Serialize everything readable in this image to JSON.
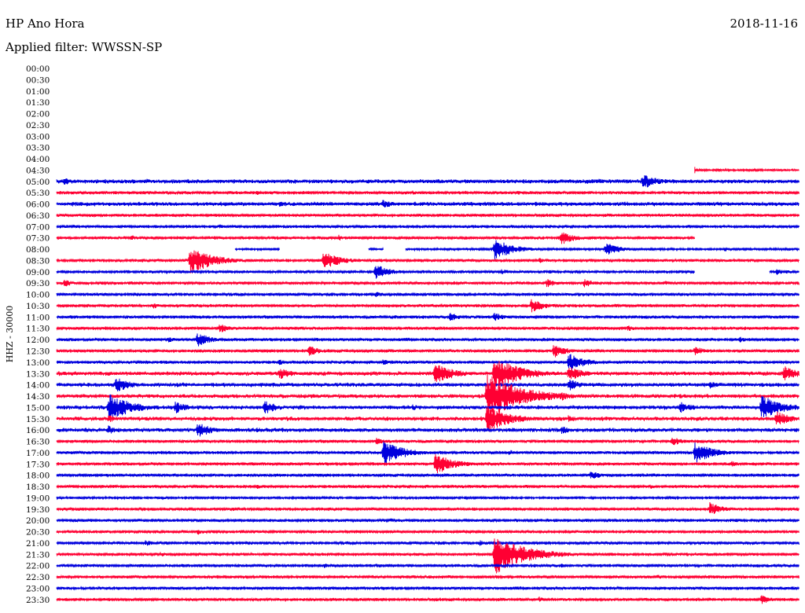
{
  "header": {
    "title": "HP Ano Hora",
    "date": "2018-11-16",
    "filter": "Applied filter: WWSSN-SP"
  },
  "chart_data": {
    "type": "line",
    "title": "HP Ano Hora",
    "subtitle": "Applied filter: WWSSN-SP",
    "date": "2018-11-16",
    "ylabel": "HHZ - 30000",
    "yticks": [
      "00:00",
      "00:30",
      "01:00",
      "01:30",
      "02:00",
      "02:30",
      "03:00",
      "03:30",
      "04:00",
      "04:30",
      "05:00",
      "05:30",
      "06:00",
      "06:30",
      "07:00",
      "07:30",
      "08:00",
      "08:30",
      "09:00",
      "09:30",
      "10:00",
      "10:30",
      "11:00",
      "11:30",
      "12:00",
      "12:30",
      "13:00",
      "13:30",
      "14:00",
      "14:30",
      "15:00",
      "15:30",
      "16:00",
      "16:30",
      "17:00",
      "17:30",
      "18:00",
      "18:30",
      "19:00",
      "19:30",
      "20:00",
      "20:30",
      "21:00",
      "21:30",
      "22:00",
      "22:30",
      "23:00",
      "23:30"
    ],
    "colors": {
      "odd": "#0000dd",
      "even": "#ff0033"
    },
    "first_trace_index": 9,
    "traces": [
      {
        "time": "04:30",
        "color": "red",
        "start_frac": 0.86,
        "end_frac": 1.0,
        "amp": 1,
        "events": []
      },
      {
        "time": "05:00",
        "color": "blue",
        "amp": 2,
        "events": [
          [
            0.01,
            5
          ],
          [
            0.12,
            4
          ],
          [
            0.73,
            4
          ],
          [
            0.79,
            10
          ]
        ]
      },
      {
        "time": "05:30",
        "color": "red",
        "amp": 1.5,
        "events": [
          [
            0.27,
            3
          ],
          [
            0.48,
            3
          ],
          [
            0.62,
            3
          ]
        ]
      },
      {
        "time": "06:00",
        "color": "blue",
        "amp": 2,
        "events": [
          [
            0.04,
            3
          ],
          [
            0.3,
            4
          ],
          [
            0.44,
            6
          ],
          [
            0.6,
            3
          ]
        ]
      },
      {
        "time": "06:30",
        "color": "red",
        "amp": 1.5,
        "events": [
          [
            0.27,
            2
          ],
          [
            0.73,
            2
          ],
          [
            0.84,
            2
          ]
        ]
      },
      {
        "time": "07:00",
        "color": "blue",
        "amp": 1.5,
        "events": [
          [
            0.22,
            3
          ],
          [
            0.5,
            2
          ]
        ]
      },
      {
        "time": "07:30",
        "color": "red",
        "amp": 1.5,
        "end_frac": 0.86,
        "events": [
          [
            0.1,
            4
          ],
          [
            0.38,
            4
          ],
          [
            0.68,
            9
          ]
        ]
      },
      {
        "time": "08:00",
        "color": "blue",
        "amp": 1.2,
        "gaps": [
          [
            0.0,
            0.24
          ],
          [
            0.3,
            0.42
          ],
          [
            0.44,
            0.47
          ]
        ],
        "events": [
          [
            0.59,
            14
          ],
          [
            0.74,
            9
          ],
          [
            0.9,
            3
          ]
        ]
      },
      {
        "time": "08:30",
        "color": "red",
        "amp": 1.5,
        "events": [
          [
            0.18,
            18
          ],
          [
            0.36,
            12
          ],
          [
            0.65,
            4
          ]
        ]
      },
      {
        "time": "09:00",
        "color": "blue",
        "amp": 1.5,
        "gaps": [
          [
            0.86,
            0.96
          ]
        ],
        "events": [
          [
            0.43,
            10
          ],
          [
            0.6,
            4
          ],
          [
            0.97,
            4
          ]
        ]
      },
      {
        "time": "09:30",
        "color": "red",
        "amp": 1.5,
        "events": [
          [
            0.01,
            5
          ],
          [
            0.66,
            6
          ],
          [
            0.71,
            6
          ],
          [
            0.82,
            3
          ]
        ]
      },
      {
        "time": "10:00",
        "color": "blue",
        "amp": 1.5,
        "events": [
          [
            0.43,
            4
          ]
        ]
      },
      {
        "time": "10:30",
        "color": "red",
        "amp": 1.5,
        "events": [
          [
            0.13,
            4
          ],
          [
            0.64,
            9
          ]
        ]
      },
      {
        "time": "11:00",
        "color": "blue",
        "amp": 1.5,
        "events": [
          [
            0.53,
            6
          ],
          [
            0.59,
            6
          ]
        ]
      },
      {
        "time": "11:30",
        "color": "red",
        "amp": 1.5,
        "events": [
          [
            0.22,
            6
          ],
          [
            0.77,
            4
          ]
        ]
      },
      {
        "time": "12:00",
        "color": "blue",
        "amp": 1.5,
        "events": [
          [
            0.15,
            4
          ],
          [
            0.19,
            9
          ],
          [
            0.92,
            4
          ]
        ]
      },
      {
        "time": "12:30",
        "color": "red",
        "amp": 1.5,
        "events": [
          [
            0.34,
            7
          ],
          [
            0.67,
            9
          ],
          [
            0.86,
            6
          ]
        ]
      },
      {
        "time": "13:00",
        "color": "blue",
        "amp": 1.5,
        "events": [
          [
            0.12,
            3
          ],
          [
            0.3,
            4
          ],
          [
            0.44,
            4
          ],
          [
            0.69,
            12
          ]
        ]
      },
      {
        "time": "13:30",
        "color": "red",
        "amp": 2,
        "events": [
          [
            0.08,
            3
          ],
          [
            0.3,
            8
          ],
          [
            0.51,
            14
          ],
          [
            0.59,
            22
          ],
          [
            0.69,
            10
          ],
          [
            0.98,
            10
          ]
        ]
      },
      {
        "time": "14:00",
        "color": "blue",
        "amp": 2,
        "events": [
          [
            0.08,
            10
          ],
          [
            0.69,
            8
          ],
          [
            0.88,
            5
          ]
        ]
      },
      {
        "time": "14:30",
        "color": "red",
        "amp": 2,
        "events": [
          [
            0.58,
            30
          ],
          [
            0.68,
            6
          ]
        ]
      },
      {
        "time": "15:00",
        "color": "blue",
        "amp": 2,
        "events": [
          [
            0.07,
            18
          ],
          [
            0.16,
            8
          ],
          [
            0.28,
            9
          ],
          [
            0.48,
            4
          ],
          [
            0.84,
            8
          ],
          [
            0.95,
            16
          ]
        ]
      },
      {
        "time": "15:30",
        "color": "red",
        "amp": 2,
        "events": [
          [
            0.07,
            5
          ],
          [
            0.58,
            18
          ],
          [
            0.69,
            5
          ],
          [
            0.97,
            10
          ]
        ]
      },
      {
        "time": "16:00",
        "color": "blue",
        "amp": 2,
        "events": [
          [
            0.07,
            6
          ],
          [
            0.19,
            10
          ],
          [
            0.27,
            4
          ],
          [
            0.68,
            6
          ]
        ]
      },
      {
        "time": "16:30",
        "color": "red",
        "amp": 1.5,
        "events": [
          [
            0.43,
            5
          ],
          [
            0.83,
            6
          ]
        ]
      },
      {
        "time": "17:00",
        "color": "blue",
        "amp": 1.5,
        "events": [
          [
            0.06,
            2
          ],
          [
            0.44,
            16
          ],
          [
            0.61,
            4
          ],
          [
            0.86,
            14
          ]
        ]
      },
      {
        "time": "17:30",
        "color": "red",
        "amp": 1.5,
        "events": [
          [
            0.51,
            14
          ],
          [
            0.91,
            4
          ]
        ]
      },
      {
        "time": "18:00",
        "color": "blue",
        "amp": 1.5,
        "events": [
          [
            0.72,
            6
          ]
        ]
      },
      {
        "time": "18:30",
        "color": "red",
        "amp": 1.5,
        "events": [
          [
            0.27,
            3
          ],
          [
            0.8,
            3
          ]
        ]
      },
      {
        "time": "19:00",
        "color": "blue",
        "amp": 1.2,
        "events": [
          [
            0.55,
            2
          ]
        ]
      },
      {
        "time": "19:30",
        "color": "red",
        "amp": 1.5,
        "events": [
          [
            0.88,
            9
          ]
        ]
      },
      {
        "time": "20:00",
        "color": "blue",
        "amp": 1.5,
        "events": [
          [
            0.45,
            3
          ]
        ]
      },
      {
        "time": "20:30",
        "color": "red",
        "amp": 1.5,
        "events": [
          [
            0.19,
            4
          ],
          [
            0.72,
            2
          ]
        ]
      },
      {
        "time": "21:00",
        "color": "blue",
        "amp": 1.5,
        "events": [
          [
            0.12,
            4
          ],
          [
            0.57,
            4
          ],
          [
            0.71,
            3
          ]
        ]
      },
      {
        "time": "21:30",
        "color": "red",
        "amp": 1.5,
        "events": [
          [
            0.14,
            3
          ],
          [
            0.59,
            26
          ]
        ]
      },
      {
        "time": "22:00",
        "color": "blue",
        "amp": 1.5,
        "events": [
          [
            0.36,
            3
          ],
          [
            0.68,
            3
          ]
        ]
      },
      {
        "time": "22:30",
        "color": "red",
        "amp": 1.5,
        "events": [
          [
            0.08,
            3
          ],
          [
            0.5,
            3
          ],
          [
            0.81,
            3
          ]
        ]
      },
      {
        "time": "23:00",
        "color": "blue",
        "amp": 1.5,
        "events": [
          [
            0.37,
            2
          ],
          [
            0.71,
            3
          ]
        ]
      },
      {
        "time": "23:30",
        "color": "red",
        "amp": 1.5,
        "events": [
          [
            0.65,
            4
          ],
          [
            0.95,
            6
          ]
        ]
      }
    ]
  }
}
